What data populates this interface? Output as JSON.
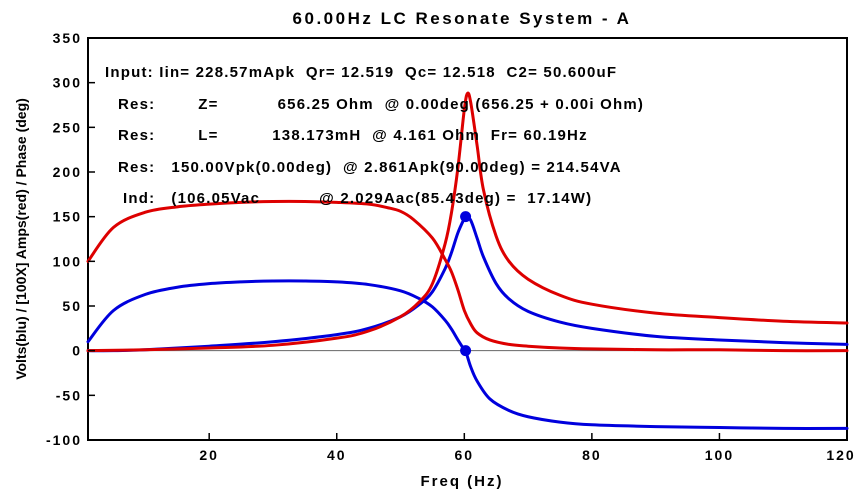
{
  "chart_data": {
    "type": "line",
    "title": "60.00Hz LC Resonate System - A",
    "xlabel": "Freq (Hz)",
    "ylabel": "Volts(blu)  /  [100X] Amps(red) / Phase (deg)",
    "xlim": [
      1,
      120
    ],
    "ylim": [
      -100,
      350
    ],
    "xticks": [
      20,
      40,
      60,
      80,
      100,
      120
    ],
    "yticks": [
      -100,
      -50,
      0,
      50,
      100,
      150,
      200,
      250,
      300,
      350
    ],
    "grid": false,
    "zero_line": true,
    "annotations": [
      "Input: Iin= 228.57mApk  Qr= 12.519  Qc= 12.518  C2= 50.600uF",
      "Res:        Z=           656.25 Ohm  @ 0.00deg (656.25 + 0.00i Ohm)",
      "Res:        L=          138.173mH  @ 4.161 Ohm  Fr= 60.19Hz",
      "Res:   150.00Vpk(0.00deg)  @ 2.861Apk(90.00deg) = 214.54VA",
      "Ind:   (106.05Vac           @ 2.029Aac(85.43deg) =  17.14W)"
    ],
    "series": [
      {
        "color": "#0000dd",
        "x": [
          1,
          5,
          10,
          15,
          20,
          25,
          30,
          35,
          40,
          45,
          50,
          53,
          55,
          57,
          58,
          59,
          60,
          60.2,
          61,
          62,
          64,
          67,
          70,
          75,
          80,
          90,
          100,
          110,
          120
        ],
        "y": [
          10,
          45,
          63,
          71,
          75,
          77,
          78,
          78,
          77,
          74,
          67,
          58,
          49,
          34,
          24,
          12,
          1,
          0,
          -18,
          -34,
          -54,
          -67,
          -74,
          -80,
          -83,
          -85,
          -86,
          -87,
          -87
        ]
      },
      {
        "color": "#0000dd",
        "x": [
          1,
          5,
          10,
          20,
          30,
          40,
          45,
          50,
          53,
          55,
          57,
          58,
          59,
          60,
          60.2,
          61,
          62,
          63,
          65,
          67,
          70,
          75,
          80,
          90,
          100,
          110,
          120
        ],
        "y": [
          0,
          0,
          1,
          5,
          10,
          18,
          25,
          38,
          52,
          66,
          92,
          110,
          132,
          148,
          150,
          146,
          126,
          105,
          75,
          58,
          44,
          32,
          25,
          16,
          12,
          9,
          7
        ]
      },
      {
        "color": "#dd0000",
        "x": [
          1,
          5,
          10,
          15,
          20,
          25,
          30,
          35,
          40,
          45,
          48,
          50,
          52,
          55,
          57,
          58,
          59,
          60,
          61,
          62,
          64,
          67,
          70,
          75,
          80,
          90,
          100,
          110,
          120
        ],
        "y": [
          100,
          138,
          155,
          161,
          164,
          166,
          167,
          167,
          166,
          164,
          160,
          156,
          147,
          126,
          102,
          88,
          68,
          45,
          30,
          20,
          12,
          7,
          5,
          3,
          2,
          1,
          1,
          0,
          0
        ]
      },
      {
        "color": "#dd0000",
        "x": [
          1,
          10,
          20,
          30,
          40,
          45,
          50,
          53,
          55,
          57,
          58,
          59,
          60,
          60.5,
          61,
          62,
          63,
          65,
          67,
          70,
          75,
          80,
          90,
          100,
          110,
          120
        ],
        "y": [
          0,
          1,
          3,
          6,
          14,
          22,
          38,
          55,
          75,
          120,
          155,
          205,
          270,
          288,
          278,
          230,
          180,
          128,
          100,
          80,
          62,
          52,
          42,
          37,
          33,
          31
        ]
      }
    ],
    "markers": [
      {
        "x": 60.2,
        "y": 150,
        "color": "#0000dd"
      },
      {
        "x": 60.2,
        "y": 0,
        "color": "#0000dd"
      }
    ]
  }
}
